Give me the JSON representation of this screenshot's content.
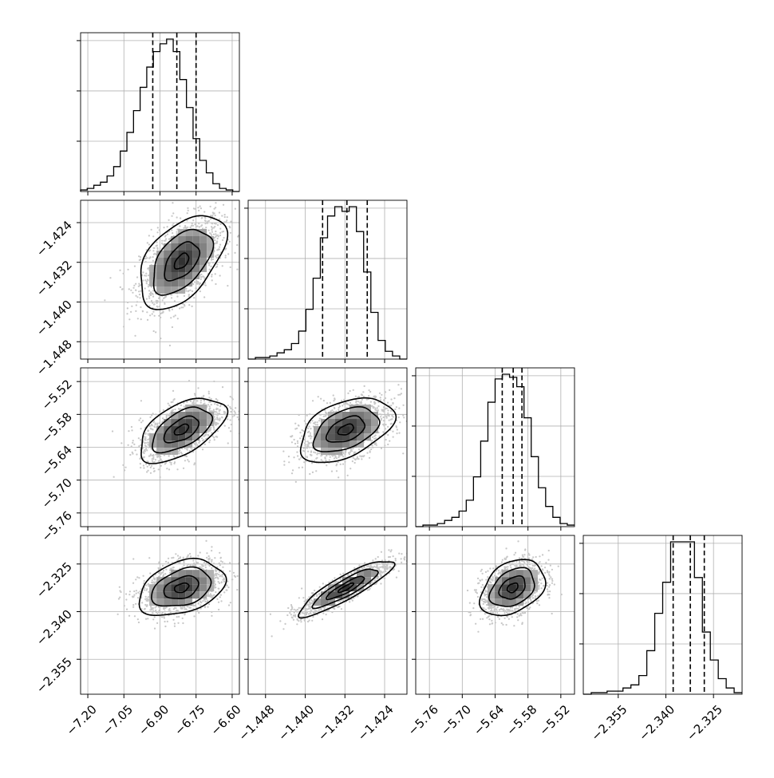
{
  "chart_data": {
    "type": "corner",
    "grid": true,
    "params": [
      {
        "range": [
          -7.23,
          -6.57
        ],
        "ticks": [
          -7.2,
          -7.05,
          -6.9,
          -6.75,
          -6.6
        ],
        "tick_labels": [
          "−7.20",
          "−7.05",
          "−6.90",
          "−6.75",
          "−6.60"
        ],
        "quantiles": [
          -6.93,
          -6.83,
          -6.75
        ],
        "mean": -6.81,
        "sd": 0.085,
        "hist": [
          1,
          2,
          4,
          6,
          10,
          16,
          26,
          38,
          52,
          67,
          80,
          90,
          95,
          98,
          90,
          72,
          54,
          34,
          20,
          12,
          5,
          2,
          1,
          0
        ]
      },
      {
        "range": [
          -1.4515,
          -1.4195
        ],
        "ticks": [
          -1.448,
          -1.44,
          -1.432,
          -1.424
        ],
        "tick_labels": [
          "−1.448",
          "−1.440",
          "−1.432",
          "−1.424"
        ],
        "quantiles": [
          -1.4365,
          -1.4316,
          -1.4275
        ],
        "mean": -1.4318,
        "sd": 0.0045,
        "hist": [
          0,
          1,
          1,
          2,
          4,
          6,
          10,
          18,
          32,
          52,
          78,
          92,
          98,
          95,
          98,
          82,
          56,
          30,
          12,
          5,
          2,
          0
        ]
      },
      {
        "range": [
          -5.785,
          -5.495
        ],
        "ticks": [
          -5.76,
          -5.7,
          -5.64,
          -5.58,
          -5.52
        ],
        "tick_labels": [
          "−5.76",
          "−5.70",
          "−5.64",
          "−5.58",
          "−5.52"
        ],
        "quantiles": [
          -5.627,
          -5.607,
          -5.591
        ],
        "mean": -5.608,
        "sd": 0.028,
        "hist": [
          0,
          1,
          1,
          2,
          4,
          6,
          10,
          17,
          32,
          55,
          80,
          95,
          98,
          96,
          90,
          70,
          45,
          25,
          13,
          6,
          2,
          1
        ]
      },
      {
        "range": [
          -2.366,
          -2.316
        ],
        "ticks": [
          -2.355,
          -2.34,
          -2.325
        ],
        "tick_labels": [
          "−2.355",
          "−2.340",
          "−2.325"
        ],
        "quantiles": [
          -2.3377,
          -2.3323,
          -2.3279
        ],
        "mean": -2.3325,
        "sd": 0.0042,
        "hist": [
          0,
          1,
          1,
          2,
          2,
          4,
          6,
          12,
          28,
          52,
          72,
          98,
          98,
          98,
          75,
          40,
          22,
          10,
          4,
          1
        ]
      }
    ],
    "correlations": {
      "1-0": 0.5,
      "2-0": 0.55,
      "2-1": 0.45,
      "3-0": 0.35,
      "3-1": 0.88,
      "3-2": 0.35
    }
  }
}
